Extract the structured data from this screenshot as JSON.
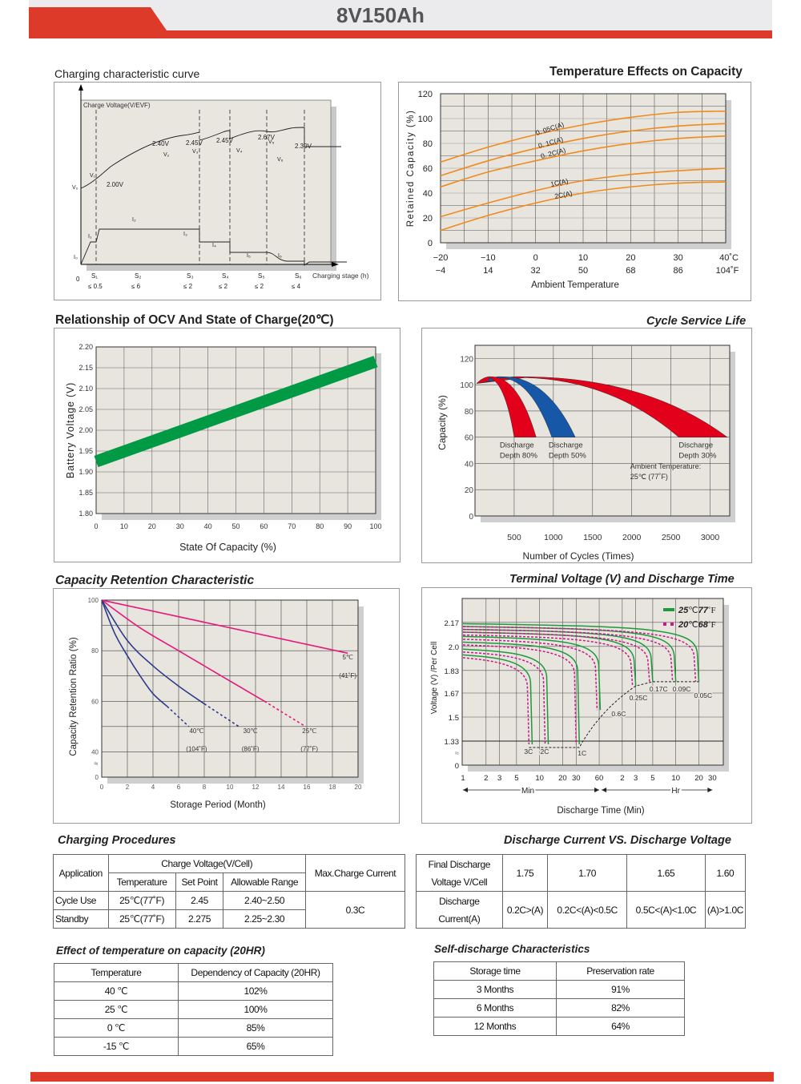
{
  "header": {
    "title": "8V150Ah",
    "accent": "#dd3a2a"
  },
  "sections": {
    "charging_curve": "Charging characteristic curve",
    "temp_effects": "Temperature Effects on Capacity",
    "ocv": "Relationship of OCV And State of Charge(20℃)",
    "cycle_life": "Cycle Service Life",
    "retention": "Capacity  Retention  Characteristic",
    "terminal": "Terminal Voltage (V) and Discharge Time",
    "charging_procedures": "Charging Procedures",
    "discharge_vs": "Discharge Current VS. Discharge Voltage",
    "temp_effect_table": "Effect of temperature on capacity (20HR)",
    "self_discharge": "Self-discharge Characteristics"
  },
  "chart_data": [
    {
      "id": "charging_curve",
      "type": "line",
      "title": "Charging characteristic curve",
      "ylabel": "Charge Voltage(V/EVF)",
      "xlabel": "Charging stage (h)",
      "x_origin_label": "0",
      "stages": [
        {
          "name": "S₁",
          "duration": "≤ 0.5"
        },
        {
          "name": "S₂",
          "duration": "≤ 6"
        },
        {
          "name": "S₃",
          "duration": "≤ 2"
        },
        {
          "name": "S₄",
          "duration": "≤ 2"
        },
        {
          "name": "S₅",
          "duration": "≤ 2"
        },
        {
          "name": "S₆",
          "duration": "≤ 4"
        }
      ],
      "voltage_labels": [
        "2.00V",
        "2.40V",
        "2.45V",
        "2.45V",
        "2.67V",
        "2.30V"
      ],
      "voltage_points": [
        "V₀",
        "V₁",
        "V₂",
        "V₃",
        "V₄",
        "V₅",
        "V₆"
      ],
      "current_points": [
        "I₀",
        "I₁",
        "I₂",
        "I₃",
        "I₄",
        "I₅",
        "I₆"
      ]
    },
    {
      "id": "temp_effects",
      "type": "line",
      "title": "Temperature Effects on Capacity",
      "xlabel": "Ambient Temperature",
      "ylabel": "Retained Capacity (%)",
      "xlim": [
        -20,
        40
      ],
      "ylim": [
        0,
        120
      ],
      "x_ticks_c": [
        "−20",
        "−10",
        "0",
        "10",
        "20",
        "30",
        "40˚C"
      ],
      "x_ticks_f": [
        "−4",
        "14",
        "32",
        "50",
        "68",
        "86",
        "104˚F"
      ],
      "y_ticks": [
        "0",
        "20",
        "40",
        "60",
        "80",
        "100",
        "120"
      ],
      "x": [
        -20,
        -10,
        0,
        10,
        20,
        30,
        40
      ],
      "series": [
        {
          "name": "0.05C(A)",
          "label": "0. 05C(A)",
          "values": [
            65,
            77,
            87,
            95,
            101,
            105,
            106
          ]
        },
        {
          "name": "0.1C(A)",
          "label": "0. 1C(A)",
          "values": [
            54,
            66,
            76,
            84,
            90,
            94,
            96
          ]
        },
        {
          "name": "0.2C(A)",
          "label": "0. 2C(A)",
          "values": [
            45,
            57,
            66,
            74,
            80,
            84,
            86
          ]
        },
        {
          "name": "1C(A)",
          "label": "1C(A)",
          "values": [
            21,
            32,
            42,
            50,
            55,
            58,
            60
          ]
        },
        {
          "name": "2C(A)",
          "label": "2C(A)",
          "values": [
            10,
            22,
            32,
            40,
            45,
            48,
            49
          ]
        }
      ],
      "color": "#f08a1c"
    },
    {
      "id": "ocv",
      "type": "line",
      "title": "Relationship of OCV And State of Charge(20℃)",
      "xlabel": "State Of Capacity (%)",
      "ylabel": "Battery Voltage (V)",
      "xlim": [
        0,
        100
      ],
      "ylim": [
        1.8,
        2.2
      ],
      "x_ticks": [
        "0",
        "10",
        "20",
        "30",
        "40",
        "50",
        "60",
        "70",
        "80",
        "90",
        "100"
      ],
      "y_ticks": [
        "1.80",
        "1.85",
        "1.90",
        "1.95",
        "2.00",
        "2.05",
        "2.10",
        "2.15",
        "2.20"
      ],
      "x": [
        0,
        100
      ],
      "values": [
        1.925,
        2.165
      ],
      "color": "#009a44"
    },
    {
      "id": "cycle_life",
      "type": "area",
      "title": "Cycle Service Life",
      "xlabel": "Number of Cycles (Times)",
      "ylabel": "Capacity (%)",
      "xlim": [
        0,
        3250
      ],
      "ylim": [
        0,
        130
      ],
      "x_ticks": [
        "500",
        "1000",
        "1500",
        "2000",
        "2500",
        "3000"
      ],
      "y_ticks": [
        "0",
        "20",
        "40",
        "60",
        "80",
        "100",
        "120"
      ],
      "series": [
        {
          "name": "Discharge Depth 80%",
          "line1": "Discharge",
          "line2": "Depth 80%",
          "end_min": 500,
          "end_max": 780,
          "peak_x": 230,
          "color": "#e3001b"
        },
        {
          "name": "Discharge Depth 50%",
          "line1": "Discharge",
          "line2": "Depth 50%",
          "end_min": 980,
          "end_max": 1280,
          "peak_x": 400,
          "color": "#1657a8"
        },
        {
          "name": "Discharge Depth 30%",
          "line1": "Discharge",
          "line2": "Depth 30%",
          "end_min": 2600,
          "end_max": 3220,
          "peak_x": 700,
          "color": "#e3001b"
        }
      ],
      "start_value": 101,
      "peak_value": 106,
      "end_value": 60,
      "annotation": [
        "Ambient Temperature:",
        "25℃  (77˚F)"
      ]
    },
    {
      "id": "retention",
      "type": "line",
      "title": "Capacity  Retention  Characteristic",
      "xlabel": "Storage Period (Month)",
      "ylabel": "Capacity Retention Ratio (%)",
      "xlim": [
        0,
        20
      ],
      "y_ticks": [
        "0",
        "40",
        "60",
        "80",
        "100"
      ],
      "x_ticks": [
        "0",
        "2",
        "4",
        "6",
        "8",
        "10",
        "12",
        "14",
        "16",
        "18",
        "20"
      ],
      "series": [
        {
          "name": "5℃ (41˚F)",
          "l1": "5℃",
          "l2": "(41˚F)",
          "color": "#e5177d",
          "x": [
            0,
            19.2
          ],
          "values": [
            100,
            79
          ],
          "dash_x": [],
          "dash_values": []
        },
        {
          "name": "25℃ (77˚F)",
          "l1": "25℃",
          "l2": "(77˚F)",
          "color": "#e5177d",
          "x": [
            0,
            3,
            6,
            9,
            12.7
          ],
          "values": [
            100,
            89,
            80,
            71,
            60
          ],
          "dash_x": [
            12.7,
            15.9
          ],
          "dash_values": [
            60,
            50
          ]
        },
        {
          "name": "30℃ (86˚F)",
          "l1": "30℃",
          "l2": "(86˚F)",
          "color": "#2e3a8c",
          "x": [
            0,
            2,
            4,
            6,
            8
          ],
          "values": [
            100,
            84,
            74,
            66,
            59
          ],
          "dash_x": [
            8,
            10.7
          ],
          "dash_values": [
            59,
            50
          ]
        },
        {
          "name": "40℃ (104˚F)",
          "l1": "40℃",
          "l2": "(104˚F)",
          "color": "#2e3a8c",
          "x": [
            0,
            1,
            2,
            3,
            4,
            5.1
          ],
          "values": [
            100,
            87,
            78,
            70,
            63,
            58
          ],
          "dash_x": [
            5.1,
            6.8
          ],
          "dash_values": [
            58,
            50
          ]
        }
      ]
    },
    {
      "id": "terminal",
      "type": "line",
      "title": "Terminal Voltage (V) and Discharge Time",
      "xlabel": "Discharge Time (Min)",
      "ylabel": "Voltage (V) /Per Cell",
      "y_ticks": [
        "0",
        "1.33",
        "1.5",
        "1.67",
        "1.83",
        "2.0",
        "2.17"
      ],
      "x_ticks": [
        "1",
        "2",
        "3",
        "5",
        "10",
        "20",
        "30",
        "60",
        "2",
        "3",
        "5",
        "10",
        "20",
        "30"
      ],
      "unit_min": "Min",
      "unit_hr": "Hr",
      "break_symbol": "≈",
      "legend": [
        {
          "label_a": "25",
          "label_b": "℃",
          "label_c": "77",
          "label_d": "˚F",
          "style": "solid",
          "color": "#1e9a3c"
        },
        {
          "label_a": "20",
          "label_b": "℃",
          "label_c": "68",
          "label_d": "˚F",
          "style": "dashed",
          "color": "#c8198a"
        }
      ],
      "rates": [
        "3C",
        "2C",
        "1C",
        "0.6C",
        "0.25C",
        "0.17C",
        "0.09C",
        "0.05C"
      ],
      "end_minutes": [
        8,
        13,
        33,
        62,
        180,
        300,
        600,
        1200
      ],
      "start_voltage": [
        1.94,
        1.98,
        2.03,
        2.07,
        2.1,
        2.12,
        2.14,
        2.16
      ],
      "end_voltage": [
        1.31,
        1.31,
        1.31,
        1.55,
        1.72,
        1.75,
        1.75,
        1.75
      ]
    }
  ],
  "tables": {
    "charging_procedures": {
      "h_application": "Application",
      "h_charge_voltage": "Charge Voltage(V/Cell)",
      "h_temperature": "Temperature",
      "h_set_point": "Set Point",
      "h_range": "Allowable Range",
      "h_max_current": "Max.Charge Current",
      "rows": [
        {
          "app": "Cycle Use",
          "temp": "25℃(77˚F)",
          "set": "2.45",
          "range": "2.40~2.50"
        },
        {
          "app": "Standby",
          "temp": "25℃(77˚F)",
          "set": "2.275",
          "range": "2.25~2.30"
        }
      ],
      "max_current": "0.3C"
    },
    "discharge_vs": {
      "row1_label_a": "Final Discharge",
      "row1_label_b": "Voltage V/Cell",
      "row2_label_a": "Discharge",
      "row2_label_b": "Current(A)",
      "voltages": [
        "1.75",
        "1.70",
        "1.65",
        "1.60"
      ],
      "currents": [
        "0.2C>(A)",
        "0.2C<(A)<0.5C",
        "0.5C<(A)<1.0C",
        "(A)>1.0C"
      ]
    },
    "temp_effect": {
      "h_temp": "Temperature",
      "h_dep": "Dependency of Capacity (20HR)",
      "rows": [
        {
          "t": "40 ℃",
          "v": "102%"
        },
        {
          "t": "25 ℃",
          "v": "100%"
        },
        {
          "t": "0 ℃",
          "v": "85%"
        },
        {
          "t": "-15 ℃",
          "v": "65%"
        }
      ]
    },
    "self_discharge": {
      "h_time": "Storage time",
      "h_rate": "Preservation rate",
      "rows": [
        {
          "t": "3 Months",
          "v": "91%"
        },
        {
          "t": "6 Months",
          "v": "82%"
        },
        {
          "t": "12 Months",
          "v": "64%"
        }
      ]
    }
  }
}
